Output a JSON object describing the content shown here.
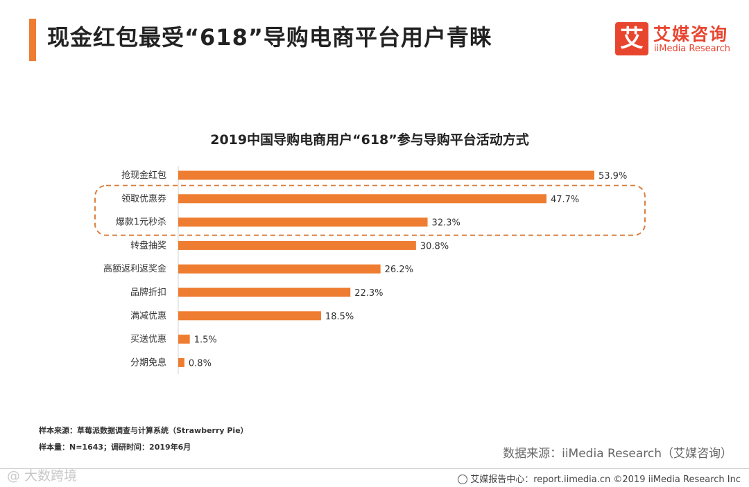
{
  "page": {
    "title": "现金红包最受“618”导购电商平台用户青睐",
    "accent_color": "#ee7d31"
  },
  "logo": {
    "mark": "艾",
    "name_cn": "艾媒咨询",
    "name_en": "iiMedia Research",
    "color": "#e8452f"
  },
  "chart_data": {
    "type": "bar",
    "orientation": "horizontal",
    "title": "2019中国导购电商用户“618”参与导购平台活动方式",
    "categories": [
      "抢现金红包",
      "领取优惠券",
      "爆款1元秒杀",
      "转盘抽奖",
      "高额返利返奖金",
      "品牌折扣",
      "满减优惠",
      "买送优惠",
      "分期免息"
    ],
    "values": [
      53.9,
      47.7,
      32.3,
      30.8,
      26.2,
      22.3,
      18.5,
      1.5,
      0.8
    ],
    "labels": [
      "53.9%",
      "47.7%",
      "32.3%",
      "30.8%",
      "26.2%",
      "22.3%",
      "18.5%",
      "1.5%",
      "0.8%"
    ],
    "unit": "%",
    "xlim": [
      0,
      60
    ],
    "bar_color": "#ee7d31",
    "highlight": {
      "categories": [
        "领取优惠券",
        "爆款1元秒杀"
      ],
      "style": "dashed-rounded-box"
    },
    "grid": false,
    "xlabel": "",
    "ylabel": ""
  },
  "footer": {
    "sample_source": "样本来源：草莓派数据调查与计算系统（Strawberry Pie）",
    "sample_size": "样本量：N=1643；调研时间：2019年6月",
    "data_source": "数据来源：iiMedia Research（艾媒咨询）",
    "watermark": "@ 大数跨境",
    "report_center": "艾媒报告中心：report.iimedia.cn  ©2019  iiMedia Research  Inc"
  }
}
